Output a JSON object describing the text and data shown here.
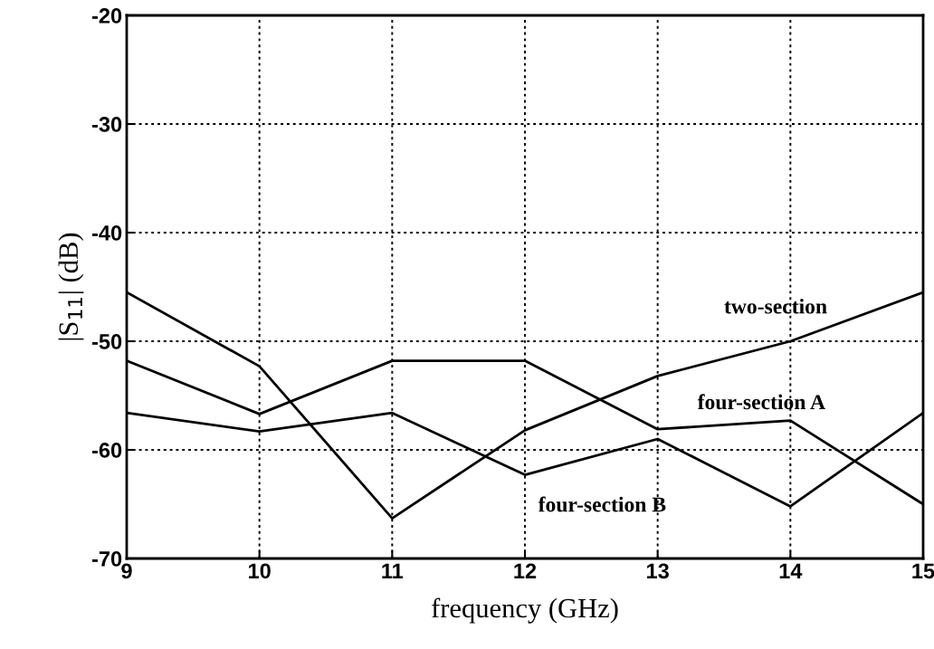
{
  "chart_data": {
    "type": "line",
    "xlabel": "frequency (GHz)",
    "ylabel": "|S$_{11}$| (dB)",
    "x": [
      9,
      10,
      11,
      12,
      13,
      14,
      15
    ],
    "series": [
      {
        "name": "two-section",
        "color": "#000000",
        "values": [
          -45.5,
          -52.3,
          -66.3,
          -58.2,
          -53.2,
          -50,
          -45.5
        ]
      },
      {
        "name": "four-section A",
        "color": "#000000",
        "values": [
          -51.8,
          -56.7,
          -51.8,
          -51.8,
          -58.1,
          -57.3,
          -65
        ]
      },
      {
        "name": "four-section B",
        "color": "#000000",
        "values": [
          -56.6,
          -58.3,
          -56.6,
          -62.3,
          -59,
          -65.2,
          -56.6
        ]
      }
    ],
    "xlim": [
      9,
      15
    ],
    "xticks": [
      9,
      10,
      11,
      12,
      13,
      14,
      15
    ],
    "ylim": [
      -70,
      -20
    ],
    "yticks": [
      -70,
      -60,
      -50,
      -40,
      -30,
      -20
    ],
    "grid": true,
    "legend": false,
    "marker": "none",
    "line_style": "solid"
  }
}
